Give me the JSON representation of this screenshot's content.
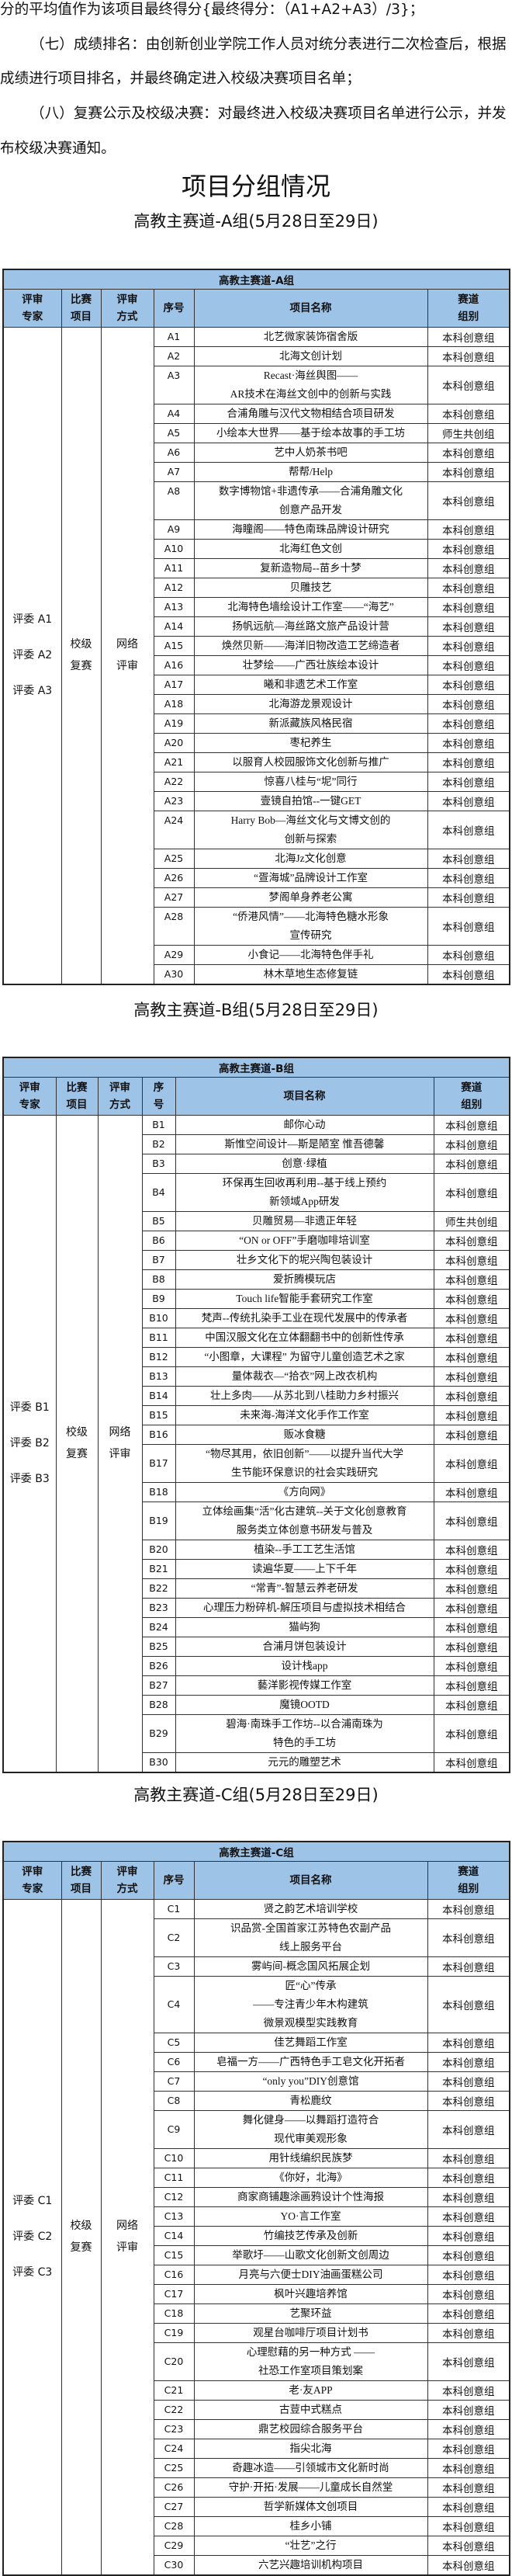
{
  "paragraphs": [
    "分的平均值作为该项目最终得分{最终得分：（A1+A2+A3）/3}；",
    "（七）成绩排名：由创新创业学院工作人员对统分表进行二次检查后，根据",
    "成绩进行项目排名，并最终确定进入校级决赛项目名单；",
    "（八）复赛公示及校级决赛：对最终进入校级决赛项目名单进行公示，并发",
    "布校级决赛通知。"
  ],
  "main_title": "项目分组情况",
  "colors": {
    "header_bg": "#9dc3e6",
    "border": "#222222"
  },
  "groups": [
    {
      "subtitle": "高教主赛道-A组(5月28日至29日)",
      "caption": "高教主赛道-A组",
      "headers": [
        "评审\n专家",
        "比赛\n项目",
        "评审\n方式",
        "序号",
        "项目名称",
        "赛道\n组别"
      ],
      "judges": [
        "评委 A1",
        "评委 A2",
        "评委 A3"
      ],
      "event": "校级\n复赛",
      "method": "网络\n评审",
      "rows": [
        {
          "seq": "A1",
          "name": "北艺微家装饰宿舍版",
          "track": "本科创意组"
        },
        {
          "seq": "A2",
          "name": "北海文创计划",
          "track": "本科创意组"
        },
        {
          "seq": "A3",
          "name": "Recast·海丝舆图——\nAR技术在海丝文创中的创新与实践",
          "track": "本科创意组"
        },
        {
          "seq": "A4",
          "name": "合浦角雕与汉代文物相结合项目研发",
          "track": "本科创意组"
        },
        {
          "seq": "A5",
          "name": "小绘本大世界——基于绘本故事的手工坊",
          "track": "师生共创组"
        },
        {
          "seq": "A6",
          "name": "艺中人奶茶书吧",
          "track": "本科创意组"
        },
        {
          "seq": "A7",
          "name": "帮帮/Help",
          "track": "本科创意组"
        },
        {
          "seq": "A8",
          "name": "数字博物馆+非遗传承——合浦角雕文化\n创意产品开发",
          "track": "本科创意组"
        },
        {
          "seq": "A9",
          "name": "海瞳阁——特色南珠品牌设计研究",
          "track": "本科创意组"
        },
        {
          "seq": "A10",
          "name": "北海红色文创",
          "track": "本科创意组"
        },
        {
          "seq": "A11",
          "name": "复新造物局--苗乡十梦",
          "track": "本科创意组"
        },
        {
          "seq": "A12",
          "name": "贝雕技艺",
          "track": "本科创意组"
        },
        {
          "seq": "A13",
          "name": "北海特色墙绘设计工作室——“海艺”",
          "track": "本科创意组"
        },
        {
          "seq": "A14",
          "name": "扬帆远航—海丝路文旅产品设计营",
          "track": "本科创意组"
        },
        {
          "seq": "A15",
          "name": "焕然贝新——海洋旧物改造工艺缔造者",
          "track": "本科创意组"
        },
        {
          "seq": "A16",
          "name": "壮梦绘——广西壮族绘本设计",
          "track": "本科创意组"
        },
        {
          "seq": "A17",
          "name": "曦和非遗艺术工作室",
          "track": "本科创意组"
        },
        {
          "seq": "A18",
          "name": "北海游龙景观设计",
          "track": "本科创意组"
        },
        {
          "seq": "A19",
          "name": "新派藏族风格民宿",
          "track": "本科创意组"
        },
        {
          "seq": "A20",
          "name": "枣杞养生",
          "track": "本科创意组"
        },
        {
          "seq": "A21",
          "name": "以服育人校园服饰文化创新与推广",
          "track": "本科创意组"
        },
        {
          "seq": "A22",
          "name": "惊喜八桂与“坭”同行",
          "track": "本科创意组"
        },
        {
          "seq": "A23",
          "name": "壹镜自拍馆--一键GET",
          "track": "本科创意组"
        },
        {
          "seq": "A24",
          "name": "Harry Bob—海丝文化与文博文创的\n创新与探索",
          "track": "本科创意组"
        },
        {
          "seq": "A25",
          "name": "北海Jz文化创意",
          "track": "本科创意组"
        },
        {
          "seq": "A26",
          "name": "“疍海城”品牌设计工作室",
          "track": "本科创意组"
        },
        {
          "seq": "A27",
          "name": "梦阁单身养老公寓",
          "track": "本科创意组"
        },
        {
          "seq": "A28",
          "name": "“侨港风情”——北海特色糖水形象\n宣传研究",
          "track": "本科创意组"
        },
        {
          "seq": "A29",
          "name": "小食记——北海特色伴手礼",
          "track": "本科创意组"
        },
        {
          "seq": "A30",
          "name": "林木草地生态修复链",
          "track": "本科创意组"
        }
      ]
    },
    {
      "subtitle": "高教主赛道-B组(5月28日至29日)",
      "caption": "高教主赛道-B组",
      "headers": [
        "评审\n专家",
        "比赛\n项目",
        "评审\n方式",
        "序\n号",
        "项目名称",
        "赛道\n组别"
      ],
      "judges": [
        "评委 B1",
        "评委 B2",
        "评委 B3"
      ],
      "event": "校级\n复赛",
      "method": "网络\n评审",
      "rows": [
        {
          "seq": "B1",
          "name": "邮你心动",
          "track": "本科创意组"
        },
        {
          "seq": "B2",
          "name": "斯惟空间设计—斯是陋室  惟吾德馨",
          "track": "本科创意组"
        },
        {
          "seq": "B3",
          "name": "创意·绿植",
          "track": "本科创意组"
        },
        {
          "seq": "B4",
          "name": "环保再生回收再利用--基于线上预约\n新领域App研发",
          "track": "本科创意组"
        },
        {
          "seq": "B5",
          "name": "贝雕贸易—非遗正年轻",
          "track": "师生共创组"
        },
        {
          "seq": "B6",
          "name": "“ON or OFF”手磨咖啡培训室",
          "track": "本科创意组"
        },
        {
          "seq": "B7",
          "name": "壮乡文化下的坭兴陶包装设计",
          "track": "本科创意组"
        },
        {
          "seq": "B8",
          "name": "爱折腾模玩店",
          "track": "本科创意组"
        },
        {
          "seq": "B9",
          "name": "Touch life智能手套研究工作室",
          "track": "本科创意组"
        },
        {
          "seq": "B10",
          "name": "梵声--传统扎染手工业在现代发展中的传承者",
          "track": "本科创意组"
        },
        {
          "seq": "B11",
          "name": "中国汉服文化在立体翻翻书中的创新性传承",
          "track": "本科创意组"
        },
        {
          "seq": "B12",
          "name": "“小图章，大课程” 为留守儿童创造艺术之家",
          "track": "本科创意组"
        },
        {
          "seq": "B13",
          "name": "量体裁衣—“拾衣”网上改衣机构",
          "track": "本科创意组"
        },
        {
          "seq": "B14",
          "name": "壮上多肉——从苏北到八桂助力乡村振兴",
          "track": "本科创意组"
        },
        {
          "seq": "B15",
          "name": "未来海-海洋文化手作工作室",
          "track": "本科创意组"
        },
        {
          "seq": "B16",
          "name": "贩冰食糖",
          "track": "本科创意组"
        },
        {
          "seq": "B17",
          "name": "“物尽其用，依旧创新”——以提升当代大学\n生节能环保意识的社会实践研究",
          "track": "本科创意组"
        },
        {
          "seq": "B18",
          "name": "《方向网》",
          "track": "本科创意组"
        },
        {
          "seq": "B19",
          "name": "立体绘画集“活”化古建筑--关于文化创意教育\n服务类立体创意书研发与普及",
          "track": "本科创意组"
        },
        {
          "seq": "B20",
          "name": "植染--手工工艺生活馆",
          "track": "本科创意组"
        },
        {
          "seq": "B21",
          "name": "读遍华夏——上下千年",
          "track": "本科创意组"
        },
        {
          "seq": "B22",
          "name": "“常青”-智慧云养老研发",
          "track": "本科创意组"
        },
        {
          "seq": "B23",
          "name": "心理压力粉碎机-解压项目与虚拟技术相结合",
          "track": "本科创意组"
        },
        {
          "seq": "B24",
          "name": "猫屿狗",
          "track": "本科创意组"
        },
        {
          "seq": "B25",
          "name": "合浦月饼包装设计",
          "track": "本科创意组"
        },
        {
          "seq": "B26",
          "name": "设计栈app",
          "track": "本科创意组"
        },
        {
          "seq": "B27",
          "name": "藝洋影视传媒工作室",
          "track": "本科创意组"
        },
        {
          "seq": "B28",
          "name": "魔镜OOTD",
          "track": "本科创意组"
        },
        {
          "seq": "B29",
          "name": "碧海·南珠手工作坊--以合浦南珠为\n特色的手工坊",
          "track": "本科创意组"
        },
        {
          "seq": "B30",
          "name": "元元的雕塑艺术",
          "track": "本科创意组"
        }
      ]
    },
    {
      "subtitle": "高教主赛道-C组(5月28日至29日)",
      "caption": "高教主赛道-C组",
      "headers": [
        "评审\n专家",
        "比赛\n项目",
        "评审\n方式",
        "序号",
        "项目名称",
        "赛道\n组别"
      ],
      "judges": [
        "评委 C1",
        "评委 C2",
        "评委 C3"
      ],
      "event": "校级\n复赛",
      "method": "网络\n评审",
      "rows": [
        {
          "seq": "C1",
          "name": "贤之韵艺术培训学校",
          "track": "本科创意组"
        },
        {
          "seq": "C2",
          "name": "识品赏-全国首家江苏特色农副产品\n线上服务平台",
          "track": "本科创意组"
        },
        {
          "seq": "C3",
          "name": "雾屿间-概念国风拓展企划",
          "track": "本科创意组"
        },
        {
          "seq": "C4",
          "name": "匠“心”传承\n——专注青少年木构建筑\n微景观模型实践教育",
          "track": "本科创意组"
        },
        {
          "seq": "C5",
          "name": "佳艺舞蹈工作室",
          "track": "本科创意组"
        },
        {
          "seq": "C6",
          "name": "皂福一方——广西特色手工皂文化开拓者",
          "track": "本科创意组"
        },
        {
          "seq": "C7",
          "name": "“only you”DIY创意馆",
          "track": "本科创意组"
        },
        {
          "seq": "C8",
          "name": "青松鹿纹",
          "track": "本科创意组"
        },
        {
          "seq": "C9",
          "name": "舞化健身——以舞蹈打造符合\n现代审美观形象",
          "track": "本科创意组"
        },
        {
          "seq": "C10",
          "name": "用针线编织民族梦",
          "track": "本科创意组"
        },
        {
          "seq": "C11",
          "name": "《你好，北海》",
          "track": "本科创意组"
        },
        {
          "seq": "C12",
          "name": "商家商铺趣涂画鸦设计个性海报",
          "track": "本科创意组"
        },
        {
          "seq": "C13",
          "name": "YO·言工作室",
          "track": "本科创意组"
        },
        {
          "seq": "C14",
          "name": "竹编技艺传承及创新",
          "track": "本科创意组"
        },
        {
          "seq": "C15",
          "name": "举歌圩——山歌文化创新文创周边",
          "track": "本科创意组"
        },
        {
          "seq": "C16",
          "name": "月亮与六便士DIY油画蛋糕公司",
          "track": "本科创意组"
        },
        {
          "seq": "C17",
          "name": "枫叶兴趣培养馆",
          "track": "本科创意组"
        },
        {
          "seq": "C18",
          "name": "艺聚环益",
          "track": "本科创意组"
        },
        {
          "seq": "C19",
          "name": "观星台咖啡厅项目计划书",
          "track": "本科创意组"
        },
        {
          "seq": "C20",
          "name": "心理慰藉的另一种方式 ——\n社恐工作室项目策划案",
          "track": "本科创意组"
        },
        {
          "seq": "C21",
          "name": "老·友APP",
          "track": "本科创意组"
        },
        {
          "seq": "C22",
          "name": "古荳中式糕点",
          "track": "本科创意组"
        },
        {
          "seq": "C23",
          "name": "鼎艺校园综合服务平台",
          "track": "本科创意组"
        },
        {
          "seq": "C24",
          "name": "指尖北海",
          "track": "本科创意组"
        },
        {
          "seq": "C25",
          "name": "奇趣冰造——引领城市文化新时尚",
          "track": "本科创意组"
        },
        {
          "seq": "C26",
          "name": "守护·开拓·发展——儿童成长自然堂",
          "track": "本科创意组"
        },
        {
          "seq": "C27",
          "name": "哲学新媒体文创项目",
          "track": "本科创意组"
        },
        {
          "seq": "C28",
          "name": "桂乡小铺",
          "track": "本科创意组"
        },
        {
          "seq": "C29",
          "name": "“壮艺”之行",
          "track": "本科创意组"
        },
        {
          "seq": "C30",
          "name": "六艺兴趣培训机构项目",
          "track": "本科创意组"
        }
      ]
    }
  ]
}
